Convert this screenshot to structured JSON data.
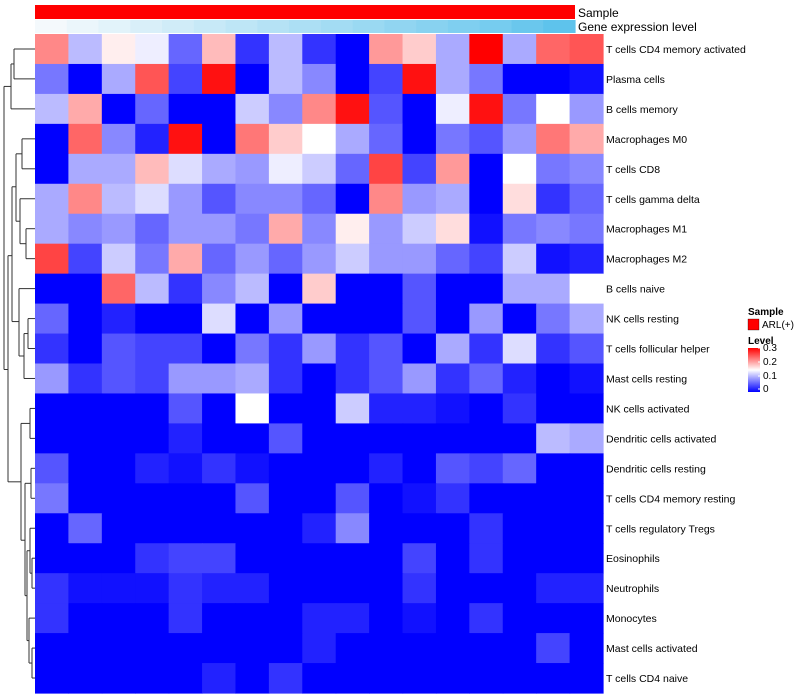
{
  "chart_data": {
    "type": "heatmap",
    "title": "",
    "xlabel": "",
    "ylabel": "",
    "rows": [
      "T cells CD4 memory activated",
      "Plasma cells",
      "B cells memory",
      "Macrophages M0",
      "T cells CD8",
      "T cells gamma delta",
      "Macrophages M1",
      "Macrophages M2",
      "B cells naive",
      "NK cells resting",
      "T cells follicular helper",
      "Mast cells resting",
      "NK cells activated",
      "Dendritic cells activated",
      "Dendritic cells resting",
      "T cells CD4 memory resting",
      "T cells regulatory  Tregs",
      "Eosinophils",
      "Neutrophils",
      "Monocytes",
      "Mast cells activated",
      "T cells CD4 naive"
    ],
    "values": [
      [
        0.22,
        0.11,
        0.16,
        0.14,
        0.06,
        0.19,
        0.03,
        0.11,
        0.03,
        0.0,
        0.21,
        0.18,
        0.1,
        0.3,
        0.1,
        0.24,
        0.25
      ],
      [
        0.07,
        0.0,
        0.1,
        0.25,
        0.04,
        0.29,
        0.0,
        0.11,
        0.08,
        0.0,
        0.04,
        0.29,
        0.1,
        0.07,
        0.0,
        0.0,
        0.01
      ],
      [
        0.11,
        0.2,
        0.0,
        0.06,
        0.0,
        0.0,
        0.12,
        0.08,
        0.22,
        0.29,
        0.05,
        0.0,
        0.14,
        0.29,
        0.07,
        0.15,
        0.09
      ],
      [
        0.0,
        0.24,
        0.08,
        0.02,
        0.29,
        0.0,
        0.23,
        0.18,
        0.15,
        0.1,
        0.06,
        0.0,
        0.07,
        0.05,
        0.09,
        0.23,
        0.2
      ],
      [
        0.0,
        0.1,
        0.1,
        0.19,
        0.13,
        0.1,
        0.09,
        0.14,
        0.12,
        0.06,
        0.26,
        0.04,
        0.21,
        0.0,
        0.15,
        0.07,
        0.08
      ],
      [
        0.1,
        0.22,
        0.11,
        0.13,
        0.09,
        0.05,
        0.08,
        0.08,
        0.06,
        0.0,
        0.22,
        0.09,
        0.1,
        0.0,
        0.17,
        0.03,
        0.06
      ],
      [
        0.1,
        0.08,
        0.09,
        0.06,
        0.09,
        0.09,
        0.07,
        0.2,
        0.08,
        0.16,
        0.09,
        0.12,
        0.17,
        0.01,
        0.07,
        0.08,
        0.07
      ],
      [
        0.26,
        0.04,
        0.12,
        0.07,
        0.2,
        0.06,
        0.09,
        0.06,
        0.09,
        0.12,
        0.09,
        0.09,
        0.06,
        0.04,
        0.12,
        0.01,
        0.02
      ],
      [
        0.0,
        0.0,
        0.24,
        0.11,
        0.03,
        0.08,
        0.11,
        0.0,
        0.18,
        0.0,
        0.0,
        0.05,
        0.0,
        0.0,
        0.1,
        0.1,
        0.15
      ],
      [
        0.06,
        0.0,
        0.02,
        0.0,
        0.0,
        0.13,
        0.0,
        0.09,
        0.0,
        0.0,
        0.0,
        0.05,
        0.0,
        0.09,
        0.0,
        0.07,
        0.1
      ],
      [
        0.03,
        0.0,
        0.05,
        0.04,
        0.04,
        0.0,
        0.07,
        0.03,
        0.09,
        0.03,
        0.05,
        0.0,
        0.1,
        0.03,
        0.13,
        0.03,
        0.05
      ],
      [
        0.09,
        0.03,
        0.05,
        0.04,
        0.09,
        0.09,
        0.1,
        0.03,
        0.0,
        0.03,
        0.05,
        0.09,
        0.03,
        0.06,
        0.02,
        0.0,
        0.01
      ],
      [
        0.0,
        0.0,
        0.0,
        0.0,
        0.05,
        0.0,
        0.15,
        0.0,
        0.0,
        0.12,
        0.02,
        0.02,
        0.01,
        0.0,
        0.03,
        0.0,
        0.0
      ],
      [
        0.0,
        0.0,
        0.0,
        0.0,
        0.02,
        0.0,
        0.0,
        0.05,
        0.0,
        0.0,
        0.0,
        0.0,
        0.0,
        0.0,
        0.0,
        0.11,
        0.1
      ],
      [
        0.05,
        0.0,
        0.0,
        0.02,
        0.01,
        0.03,
        0.01,
        0.0,
        0.0,
        0.0,
        0.02,
        0.0,
        0.05,
        0.04,
        0.06,
        0.0,
        0.0
      ],
      [
        0.07,
        0.0,
        0.0,
        0.0,
        0.0,
        0.0,
        0.05,
        0.0,
        0.0,
        0.05,
        0.0,
        0.01,
        0.03,
        0.0,
        0.0,
        0.0,
        0.0
      ],
      [
        0.0,
        0.06,
        0.0,
        0.0,
        0.0,
        0.0,
        0.0,
        0.0,
        0.02,
        0.08,
        0.0,
        0.0,
        0.0,
        0.03,
        0.0,
        0.0,
        0.0
      ],
      [
        0.0,
        0.0,
        0.0,
        0.03,
        0.04,
        0.04,
        0.0,
        0.0,
        0.0,
        0.0,
        0.0,
        0.04,
        0.0,
        0.03,
        0.0,
        0.0,
        0.0
      ],
      [
        0.03,
        0.01,
        0.01,
        0.01,
        0.03,
        0.02,
        0.02,
        0.0,
        0.0,
        0.0,
        0.0,
        0.03,
        0.0,
        0.0,
        0.0,
        0.02,
        0.02
      ],
      [
        0.03,
        0.0,
        0.0,
        0.0,
        0.03,
        0.0,
        0.0,
        0.0,
        0.02,
        0.02,
        0.0,
        0.01,
        0.0,
        0.03,
        0.0,
        0.0,
        0.0
      ],
      [
        0.0,
        0.0,
        0.0,
        0.0,
        0.0,
        0.0,
        0.0,
        0.0,
        0.02,
        0.0,
        0.0,
        0.0,
        0.0,
        0.0,
        0.0,
        0.04,
        0.0
      ],
      [
        0.0,
        0.0,
        0.0,
        0.0,
        0.0,
        0.02,
        0.0,
        0.03,
        0.0,
        0.0,
        0.0,
        0.0,
        0.0,
        0.0,
        0.0,
        0.0,
        0.0
      ]
    ],
    "color_range": [
      0,
      0.3
    ],
    "colors": {
      "low": "#0000ff",
      "mid": "#ffffff",
      "high": "#ff0000"
    },
    "annotations": {
      "sample_label": "Sample",
      "sample_color": "#ff0000",
      "gene_label": "Gene expression level",
      "gene_values": [
        0.0,
        0.06,
        0.12,
        0.18,
        0.24,
        0.3,
        0.36,
        0.42,
        0.48,
        0.54,
        0.6,
        0.66,
        0.72,
        0.78,
        0.84,
        0.92,
        1.0
      ],
      "gene_colors": {
        "low": "#f4f9fc",
        "high": "#5ec3ec"
      }
    },
    "legend": {
      "sample_title": "Sample",
      "sample_entry": "ARL(+)",
      "level_title": "Level",
      "level_ticks": [
        "0.3",
        "0.2",
        "0.1",
        "0"
      ]
    }
  }
}
